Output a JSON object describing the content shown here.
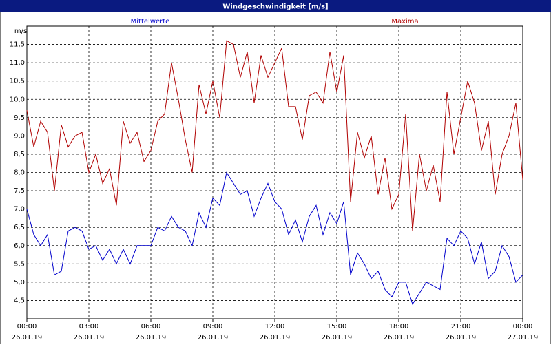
{
  "chart_data": {
    "type": "line",
    "title": "Windgeschwindigkeit [m/s]",
    "ylabel": "m/s",
    "x": [
      0,
      20,
      40,
      60,
      80,
      100,
      120,
      140,
      160,
      180,
      200,
      220,
      240,
      260,
      280,
      300,
      320,
      340,
      360,
      380,
      400,
      420,
      440,
      460,
      480,
      500,
      520,
      540,
      560,
      580,
      600,
      620,
      640,
      660,
      680,
      700,
      720,
      740,
      760,
      780,
      800,
      820,
      840,
      860,
      880,
      900,
      920,
      940,
      960,
      980,
      1000,
      1020,
      1040,
      1060,
      1080,
      1100,
      1120,
      1140,
      1160,
      1180,
      1200,
      1220,
      1240,
      1260,
      1280,
      1300,
      1320,
      1340,
      1360,
      1380,
      1400,
      1420,
      1440
    ],
    "series": [
      {
        "name": "Mittelwerte",
        "color": "#0000cc",
        "values": [
          7.0,
          6.3,
          6.0,
          6.3,
          5.2,
          5.3,
          6.4,
          6.5,
          6.4,
          5.9,
          6.0,
          5.6,
          5.9,
          5.5,
          5.9,
          5.5,
          6.0,
          6.0,
          6.0,
          6.5,
          6.4,
          6.8,
          6.5,
          6.4,
          6.0,
          6.9,
          6.5,
          7.3,
          7.1,
          8.0,
          7.7,
          7.4,
          7.5,
          6.8,
          7.3,
          7.7,
          7.2,
          7.0,
          6.3,
          6.7,
          6.1,
          6.8,
          7.1,
          6.3,
          6.9,
          6.6,
          7.2,
          5.2,
          5.8,
          5.5,
          5.1,
          5.3,
          4.8,
          4.6,
          5.0,
          5.0,
          4.4,
          4.7,
          5.0,
          4.9,
          4.8,
          6.2,
          6.0,
          6.4,
          6.2,
          5.5,
          6.1,
          5.1,
          5.3,
          6.0,
          5.7,
          5.0,
          5.2
        ]
      },
      {
        "name": "Maxima",
        "color": "#b00000",
        "values": [
          9.7,
          8.7,
          9.4,
          9.1,
          7.5,
          9.3,
          8.7,
          9.0,
          9.1,
          8.0,
          8.5,
          7.7,
          8.1,
          7.1,
          9.4,
          8.8,
          9.1,
          8.3,
          8.6,
          9.4,
          9.6,
          11.0,
          10.0,
          8.9,
          8.0,
          10.4,
          9.6,
          10.5,
          9.5,
          11.6,
          11.5,
          10.6,
          11.3,
          9.9,
          11.2,
          10.6,
          11.0,
          11.4,
          9.8,
          9.8,
          8.9,
          10.1,
          10.2,
          9.9,
          11.3,
          10.2,
          11.2,
          7.2,
          9.1,
          8.4,
          9.0,
          7.4,
          8.4,
          7.0,
          7.4,
          9.6,
          6.4,
          8.5,
          7.5,
          8.2,
          7.2,
          10.2,
          8.5,
          9.5,
          10.5,
          9.9,
          8.6,
          9.4,
          7.4,
          8.5,
          9.0,
          9.9,
          7.8
        ]
      }
    ],
    "xlim": [
      0,
      1440
    ],
    "xticks": [
      {
        "value": 0,
        "label": "00:00"
      },
      {
        "value": 180,
        "label": "03:00"
      },
      {
        "value": 360,
        "label": "06:00"
      },
      {
        "value": 540,
        "label": "09:00"
      },
      {
        "value": 720,
        "label": "12:00"
      },
      {
        "value": 900,
        "label": "15:00"
      },
      {
        "value": 1080,
        "label": "18:00"
      },
      {
        "value": 1260,
        "label": "21:00"
      },
      {
        "value": 1440,
        "label": "00:00"
      }
    ],
    "xtick_dates": [
      "26.01.19",
      "26.01.19",
      "26.01.19",
      "26.01.19",
      "26.01.19",
      "26.01.19",
      "26.01.19",
      "26.01.19",
      "27.01.19"
    ],
    "ylim": [
      4,
      12
    ],
    "yticks": [
      {
        "value": 4.5,
        "label": "4,5"
      },
      {
        "value": 5,
        "label": "5,0"
      },
      {
        "value": 5.5,
        "label": "5,5"
      },
      {
        "value": 6,
        "label": "6,0"
      },
      {
        "value": 6.5,
        "label": "6,5"
      },
      {
        "value": 7,
        "label": "7,0"
      },
      {
        "value": 7.5,
        "label": "7,5"
      },
      {
        "value": 8,
        "label": "8,0"
      },
      {
        "value": 8.5,
        "label": "8,5"
      },
      {
        "value": 9,
        "label": "9,0"
      },
      {
        "value": 9.5,
        "label": "9,5"
      },
      {
        "value": 10,
        "label": "10,0"
      },
      {
        "value": 10.5,
        "label": "10,5"
      },
      {
        "value": 11,
        "label": "11,0"
      },
      {
        "value": 11.5,
        "label": "11,5"
      }
    ],
    "grid": true
  }
}
